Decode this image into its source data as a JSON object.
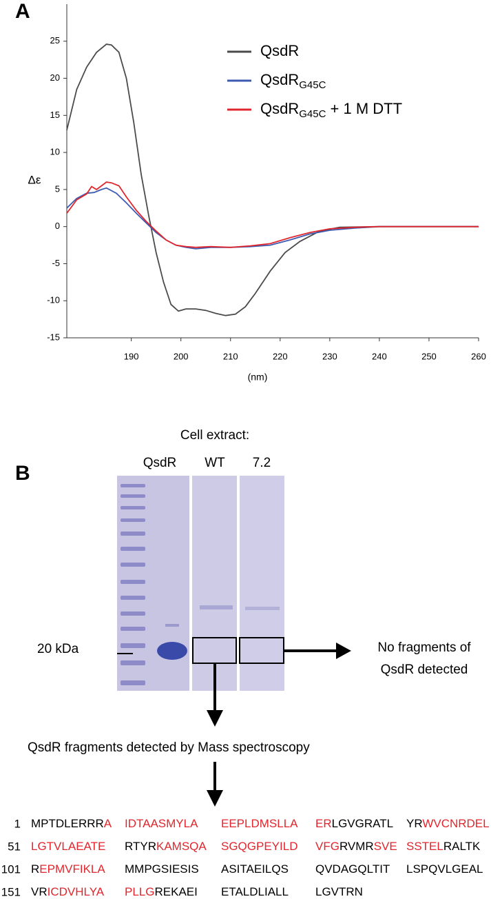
{
  "panel_labels": {
    "a": "A",
    "b": "B"
  },
  "chart_data": {
    "type": "line",
    "xlabel": "(nm)",
    "ylabel": "Δε",
    "xlim": [
      177,
      260
    ],
    "xticks": [
      190,
      200,
      210,
      220,
      230,
      240,
      250,
      260
    ],
    "ylim": [
      -15,
      30
    ],
    "yticks": [
      -15,
      -10,
      -5,
      0,
      5,
      10,
      15,
      20,
      25
    ],
    "grid": false,
    "legend": "top-right",
    "series": [
      {
        "name": "QsdR",
        "color": "#4a4a4a",
        "x": [
          177,
          179,
          181,
          183,
          185,
          186,
          187.5,
          189,
          190.5,
          192,
          193.5,
          195,
          196.5,
          198,
          199.5,
          201,
          203,
          205,
          207,
          209,
          211,
          213,
          215,
          218,
          221,
          224,
          228,
          232,
          240,
          250,
          260
        ],
        "values": [
          13,
          18.5,
          21.5,
          23.5,
          24.6,
          24.5,
          23.5,
          20,
          14,
          7,
          1.5,
          -3.5,
          -7.5,
          -10.5,
          -11.4,
          -11.1,
          -11.1,
          -11.3,
          -11.7,
          -12,
          -11.8,
          -10.8,
          -9,
          -6,
          -3.5,
          -2,
          -0.6,
          -0.1,
          0,
          0,
          0
        ]
      },
      {
        "name": "QsdR",
        "name_subscript": "G45C",
        "color": "#3d5ab0",
        "x": [
          177,
          179,
          181,
          182.5,
          184,
          185,
          187,
          189,
          191,
          193,
          195,
          197,
          199,
          201,
          203,
          206,
          210,
          214,
          218,
          222,
          226,
          230,
          235,
          240,
          250,
          260
        ],
        "values": [
          2.5,
          3.8,
          4.5,
          4.6,
          5,
          5.2,
          4.5,
          3.2,
          1.8,
          0.5,
          -0.8,
          -1.8,
          -2.5,
          -2.8,
          -3,
          -2.8,
          -2.8,
          -2.7,
          -2.5,
          -1.8,
          -1,
          -0.5,
          -0.2,
          0,
          0,
          0
        ]
      },
      {
        "name": "QsdR",
        "name_subscript": "G45C",
        "name_suffix": " + 1 M DTT",
        "color": "#e0262c",
        "x": [
          177,
          179,
          181,
          182,
          183,
          184,
          185,
          186,
          187.5,
          189,
          191,
          193,
          195,
          197,
          199,
          201,
          203,
          206,
          210,
          214,
          218,
          222,
          226,
          230,
          235,
          240,
          250,
          260
        ],
        "values": [
          1.8,
          3.6,
          4.4,
          5.4,
          5,
          5.5,
          6,
          5.9,
          5.5,
          4,
          2.2,
          0.7,
          -0.6,
          -1.8,
          -2.5,
          -2.7,
          -2.8,
          -2.7,
          -2.8,
          -2.6,
          -2.3,
          -1.5,
          -0.8,
          -0.3,
          -0.1,
          0,
          0,
          0
        ]
      }
    ]
  },
  "panel_b": {
    "cell_extract": "Cell extract:",
    "lanes": [
      "QsdR",
      "WT",
      "7.2"
    ],
    "marker": "20 kDa",
    "no_fragments": [
      "No fragments of",
      "QsdR detected"
    ],
    "fragments_caption": "QsdR fragments detected by Mass spectroscopy",
    "sequence": [
      {
        "number": 1,
        "groups": [
          [
            {
              "text": "MPTDLERRR",
              "red": false
            },
            {
              "text": "A",
              "red": true
            }
          ],
          [
            {
              "text": "IDTAASMYLA",
              "red": true
            }
          ],
          [
            {
              "text": "EEPLDMSLLA",
              "red": true
            }
          ],
          [
            {
              "text": "ER",
              "red": true
            },
            {
              "text": "LGVGRATL",
              "red": false
            }
          ],
          [
            {
              "text": "YR",
              "red": false
            },
            {
              "text": "WVCNRDEL",
              "red": true
            }
          ]
        ]
      },
      {
        "number": 51,
        "groups": [
          [
            {
              "text": "LGTVLAEATE",
              "red": true
            }
          ],
          [
            {
              "text": "RTYR",
              "red": false
            },
            {
              "text": "KAMSQA",
              "red": true
            }
          ],
          [
            {
              "text": "SGQGPEYILD",
              "red": true
            }
          ],
          [
            {
              "text": "VFG",
              "red": true
            },
            {
              "text": "RVMR",
              "red": false
            },
            {
              "text": "SVE",
              "red": true
            }
          ],
          [
            {
              "text": "SSTEL",
              "red": true
            },
            {
              "text": "RALTK",
              "red": false
            }
          ]
        ]
      },
      {
        "number": 101,
        "groups": [
          [
            {
              "text": "R",
              "red": false
            },
            {
              "text": "EPMVFIKLA",
              "red": true
            }
          ],
          [
            {
              "text": "MMPGSIESIS",
              "red": false
            }
          ],
          [
            {
              "text": "ASITAEILQS",
              "red": false
            }
          ],
          [
            {
              "text": "QVDAGQLTIT",
              "red": false
            }
          ],
          [
            {
              "text": "LSPQVLGEAL",
              "red": false
            }
          ]
        ]
      },
      {
        "number": 151,
        "groups": [
          [
            {
              "text": "VR",
              "red": false
            },
            {
              "text": "ICDVHLYA",
              "red": true
            }
          ],
          [
            {
              "text": "PLLG",
              "red": true
            },
            {
              "text": "REKAEI",
              "red": false
            }
          ],
          [
            {
              "text": "ETALDLIALL",
              "red": false
            }
          ],
          [
            {
              "text": "LGVTRN",
              "red": false
            }
          ]
        ]
      }
    ]
  }
}
